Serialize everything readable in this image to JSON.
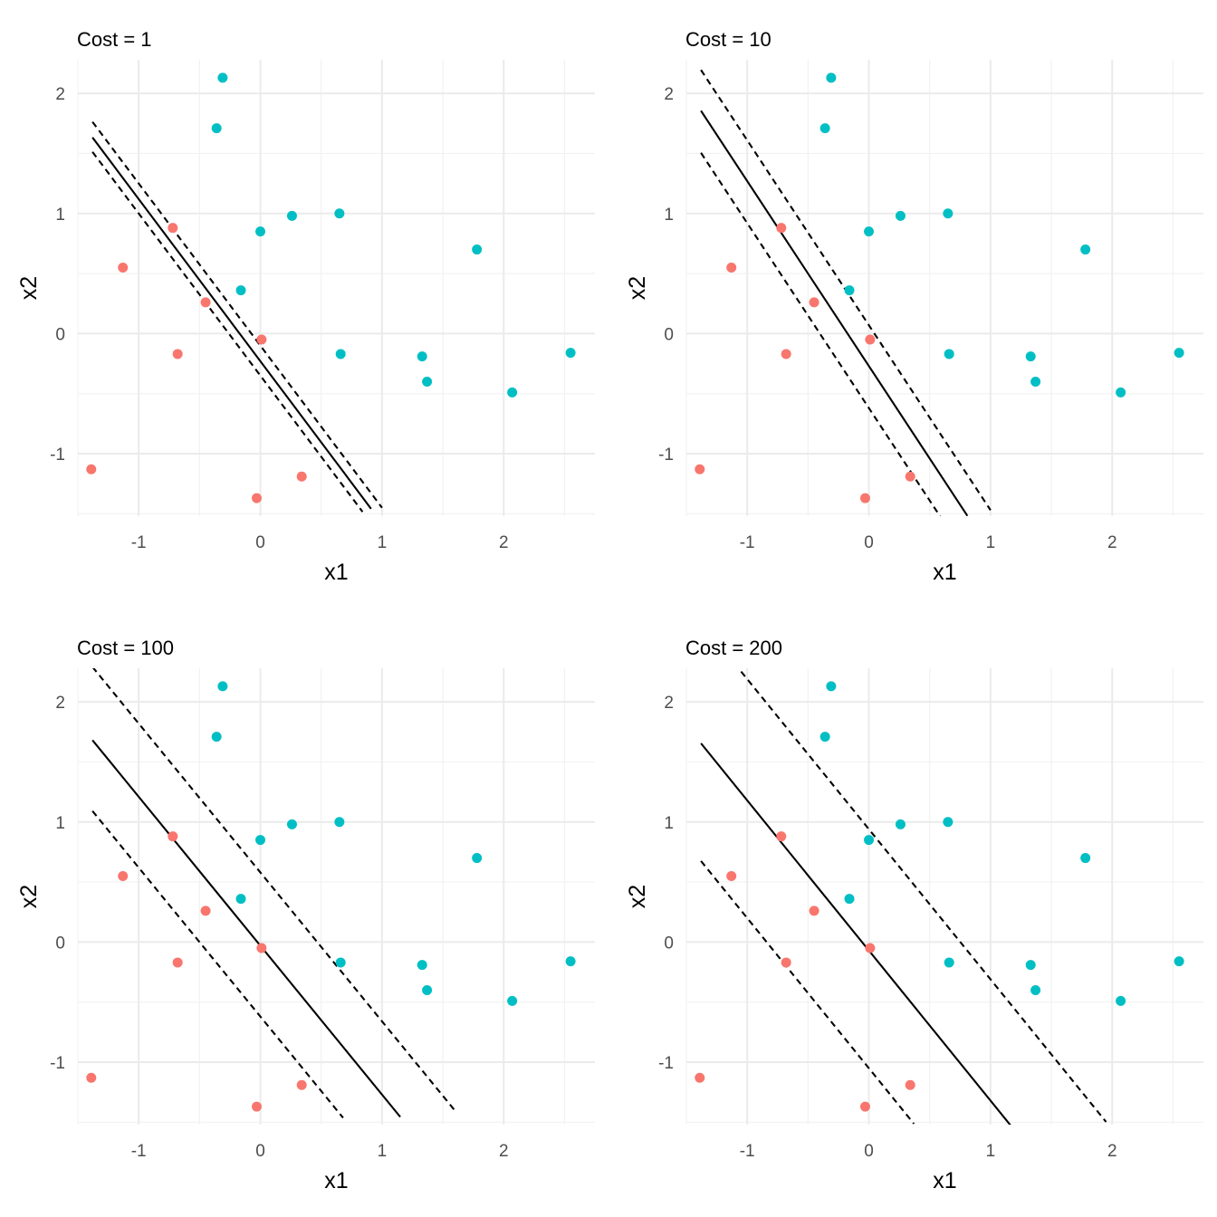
{
  "colors": {
    "class_a": "#F8766D",
    "class_b": "#00BFC4",
    "grid_major": "#EBEBEB",
    "grid_minor": "#F2F2F2",
    "line": "#000000"
  },
  "chart_data": [
    {
      "type": "scatter",
      "title": "Cost = 1",
      "xlabel": "x1",
      "ylabel": "x2",
      "xlim": [
        -1.5,
        2.75
      ],
      "ylim": [
        -1.52,
        2.28
      ],
      "xticks": [
        -1,
        0,
        1,
        2
      ],
      "yticks": [
        -1,
        0,
        1,
        2
      ],
      "grid": true,
      "legend": "none",
      "points": {
        "x": [
          -1.39,
          -1.13,
          -0.72,
          -0.68,
          -0.45,
          -0.03,
          0.01,
          0.34,
          -0.36,
          -0.31,
          -0.16,
          0.0,
          0.26,
          0.65,
          0.66,
          1.33,
          1.37,
          1.78,
          2.07,
          2.55
        ],
        "y": [
          -1.13,
          0.55,
          0.88,
          -0.17,
          0.26,
          -1.37,
          -0.05,
          -1.19,
          1.71,
          2.13,
          0.36,
          0.85,
          0.98,
          1.0,
          -0.17,
          -0.19,
          -0.4,
          0.7,
          -0.49,
          -0.16
        ],
        "class": [
          "a",
          "a",
          "a",
          "a",
          "a",
          "a",
          "a",
          "a",
          "b",
          "b",
          "b",
          "b",
          "b",
          "b",
          "b",
          "b",
          "b",
          "b",
          "b",
          "b"
        ]
      },
      "hyperplane": {
        "intercept": -0.23,
        "slope": -1.35,
        "x_range": [
          -1.38,
          0.91
        ]
      },
      "margins": [
        {
          "intercept": -0.1,
          "slope": -1.35,
          "x_range": [
            -1.38,
            1.0
          ]
        },
        {
          "intercept": -0.35,
          "slope": -1.35,
          "x_range": [
            -1.38,
            0.84
          ]
        }
      ]
    },
    {
      "type": "scatter",
      "title": "Cost = 10",
      "xlabel": "x1",
      "ylabel": "x2",
      "xlim": [
        -1.5,
        2.75
      ],
      "ylim": [
        -1.52,
        2.28
      ],
      "xticks": [
        -1,
        0,
        1,
        2
      ],
      "yticks": [
        -1,
        0,
        1,
        2
      ],
      "grid": true,
      "legend": "none",
      "points": {
        "x": [
          -1.39,
          -1.13,
          -0.72,
          -0.68,
          -0.45,
          -0.03,
          0.01,
          0.34,
          -0.36,
          -0.31,
          -0.16,
          0.0,
          0.26,
          0.65,
          0.66,
          1.33,
          1.37,
          1.78,
          2.07,
          2.55
        ],
        "y": [
          -1.13,
          0.55,
          0.88,
          -0.17,
          0.26,
          -1.37,
          -0.05,
          -1.19,
          1.71,
          2.13,
          0.36,
          0.85,
          0.98,
          1.0,
          -0.17,
          -0.19,
          -0.4,
          0.7,
          -0.49,
          -0.16
        ],
        "class": [
          "a",
          "a",
          "a",
          "a",
          "a",
          "a",
          "a",
          "a",
          "b",
          "b",
          "b",
          "b",
          "b",
          "b",
          "b",
          "b",
          "b",
          "b",
          "b",
          "b"
        ]
      },
      "hyperplane": {
        "intercept": -0.27,
        "slope": -1.54,
        "x_range": [
          -1.38,
          0.81
        ]
      },
      "margins": [
        {
          "intercept": 0.07,
          "slope": -1.54,
          "x_range": [
            -1.38,
            1.0
          ]
        },
        {
          "intercept": -0.62,
          "slope": -1.54,
          "x_range": [
            -1.38,
            0.59
          ]
        }
      ]
    },
    {
      "type": "scatter",
      "title": "Cost = 100",
      "xlabel": "x1",
      "ylabel": "x2",
      "xlim": [
        -1.5,
        2.75
      ],
      "ylim": [
        -1.52,
        2.28
      ],
      "xticks": [
        -1,
        0,
        1,
        2
      ],
      "yticks": [
        -1,
        0,
        1,
        2
      ],
      "grid": true,
      "legend": "none",
      "points": {
        "x": [
          -1.39,
          -1.13,
          -0.72,
          -0.68,
          -0.45,
          -0.03,
          0.01,
          0.34,
          -0.36,
          -0.31,
          -0.16,
          0.0,
          0.26,
          0.65,
          0.66,
          1.33,
          1.37,
          1.78,
          2.07,
          2.55
        ],
        "y": [
          -1.13,
          0.55,
          0.88,
          -0.17,
          0.26,
          -1.37,
          -0.05,
          -1.19,
          1.71,
          2.13,
          0.36,
          0.85,
          0.98,
          1.0,
          -0.17,
          -0.19,
          -0.4,
          0.7,
          -0.49,
          -0.16
        ],
        "class": [
          "a",
          "a",
          "a",
          "a",
          "a",
          "a",
          "a",
          "a",
          "b",
          "b",
          "b",
          "b",
          "b",
          "b",
          "b",
          "b",
          "b",
          "b",
          "b",
          "b"
        ]
      },
      "hyperplane": {
        "intercept": -0.03,
        "slope": -1.24,
        "x_range": [
          -1.38,
          1.15
        ]
      },
      "margins": [
        {
          "intercept": 0.58,
          "slope": -1.24,
          "x_range": [
            -1.38,
            1.6
          ]
        },
        {
          "intercept": -0.62,
          "slope": -1.24,
          "x_range": [
            -1.38,
            0.68
          ]
        }
      ]
    },
    {
      "type": "scatter",
      "title": "Cost = 200",
      "xlabel": "x1",
      "ylabel": "x2",
      "xlim": [
        -1.5,
        2.75
      ],
      "ylim": [
        -1.52,
        2.28
      ],
      "xticks": [
        -1,
        0,
        1,
        2
      ],
      "yticks": [
        -1,
        0,
        1,
        2
      ],
      "grid": true,
      "legend": "none",
      "points": {
        "x": [
          -1.39,
          -1.13,
          -0.72,
          -0.68,
          -0.45,
          -0.03,
          0.01,
          0.34,
          -0.36,
          -0.31,
          -0.16,
          0.0,
          0.26,
          0.65,
          0.66,
          1.33,
          1.37,
          1.78,
          2.07,
          2.55
        ],
        "y": [
          -1.13,
          0.55,
          0.88,
          -0.17,
          0.26,
          -1.37,
          -0.05,
          -1.19,
          1.71,
          2.13,
          0.36,
          0.85,
          0.98,
          1.0,
          -0.17,
          -0.19,
          -0.4,
          0.7,
          -0.49,
          -0.16
        ],
        "class": [
          "a",
          "a",
          "a",
          "a",
          "a",
          "a",
          "a",
          "a",
          "b",
          "b",
          "b",
          "b",
          "b",
          "b",
          "b",
          "b",
          "b",
          "b",
          "b",
          "b"
        ]
      },
      "hyperplane": {
        "intercept": -0.07,
        "slope": -1.25,
        "x_range": [
          -1.38,
          1.18
        ]
      },
      "margins": [
        {
          "intercept": 0.94,
          "slope": -1.25,
          "x_range": [
            -1.05,
            1.95
          ]
        },
        {
          "intercept": -1.05,
          "slope": -1.25,
          "x_range": [
            -1.38,
            0.37
          ]
        }
      ]
    }
  ]
}
